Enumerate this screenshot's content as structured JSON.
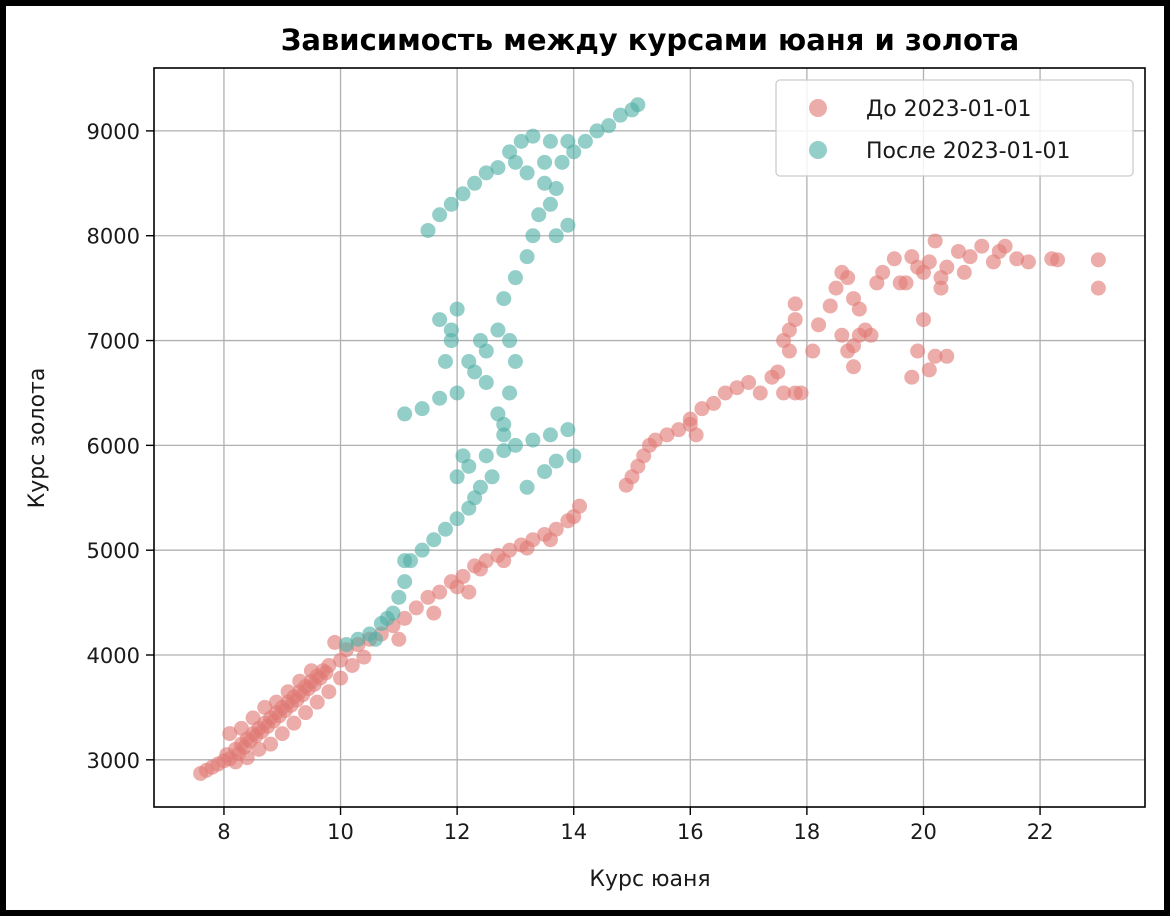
{
  "chart_data": {
    "type": "scatter",
    "title": "Зависимость между курсами юаня и золота",
    "xlabel": "Курс юаня",
    "ylabel": "Курс золота",
    "xlim": [
      6.8,
      23.8
    ],
    "ylim": [
      2550,
      9600
    ],
    "xticks": [
      8,
      10,
      12,
      14,
      16,
      18,
      20,
      22
    ],
    "yticks": [
      3000,
      4000,
      5000,
      6000,
      7000,
      8000,
      9000
    ],
    "grid": true,
    "legend_position": "top-right",
    "series": [
      {
        "name": "До 2023-01-01",
        "color": "#e07b76",
        "points": [
          [
            7.6,
            2870
          ],
          [
            7.7,
            2900
          ],
          [
            7.8,
            2930
          ],
          [
            7.9,
            2960
          ],
          [
            8.0,
            2990
          ],
          [
            8.05,
            3050
          ],
          [
            8.1,
            3010
          ],
          [
            8.2,
            3100
          ],
          [
            8.25,
            3060
          ],
          [
            8.3,
            3150
          ],
          [
            8.35,
            3120
          ],
          [
            8.4,
            3200
          ],
          [
            8.45,
            3180
          ],
          [
            8.5,
            3250
          ],
          [
            8.55,
            3230
          ],
          [
            8.6,
            3300
          ],
          [
            8.65,
            3270
          ],
          [
            8.7,
            3350
          ],
          [
            8.75,
            3320
          ],
          [
            8.8,
            3400
          ],
          [
            8.85,
            3370
          ],
          [
            8.9,
            3450
          ],
          [
            8.95,
            3420
          ],
          [
            9.0,
            3500
          ],
          [
            9.05,
            3470
          ],
          [
            9.1,
            3550
          ],
          [
            9.15,
            3520
          ],
          [
            9.2,
            3600
          ],
          [
            9.25,
            3570
          ],
          [
            9.3,
            3650
          ],
          [
            9.35,
            3620
          ],
          [
            9.4,
            3700
          ],
          [
            9.45,
            3680
          ],
          [
            9.5,
            3750
          ],
          [
            9.55,
            3720
          ],
          [
            9.6,
            3800
          ],
          [
            9.65,
            3780
          ],
          [
            9.7,
            3850
          ],
          [
            9.75,
            3830
          ],
          [
            9.8,
            3900
          ],
          [
            8.1,
            3250
          ],
          [
            8.3,
            3300
          ],
          [
            8.5,
            3400
          ],
          [
            8.7,
            3500
          ],
          [
            8.9,
            3550
          ],
          [
            9.1,
            3650
          ],
          [
            9.3,
            3750
          ],
          [
            9.5,
            3850
          ],
          [
            8.2,
            2980
          ],
          [
            8.4,
            3020
          ],
          [
            8.6,
            3100
          ],
          [
            8.8,
            3150
          ],
          [
            9.0,
            3250
          ],
          [
            9.2,
            3350
          ],
          [
            9.4,
            3450
          ],
          [
            9.6,
            3550
          ],
          [
            9.8,
            3650
          ],
          [
            10.0,
            3780
          ],
          [
            10.2,
            3900
          ],
          [
            10.4,
            3980
          ],
          [
            9.9,
            4120
          ],
          [
            10.0,
            3950
          ],
          [
            10.1,
            4050
          ],
          [
            10.3,
            4100
          ],
          [
            10.5,
            4150
          ],
          [
            10.7,
            4200
          ],
          [
            10.9,
            4280
          ],
          [
            11.0,
            4150
          ],
          [
            11.1,
            4350
          ],
          [
            11.3,
            4450
          ],
          [
            11.5,
            4550
          ],
          [
            11.6,
            4400
          ],
          [
            11.7,
            4600
          ],
          [
            11.9,
            4700
          ],
          [
            12.0,
            4650
          ],
          [
            12.1,
            4750
          ],
          [
            12.2,
            4600
          ],
          [
            12.3,
            4850
          ],
          [
            12.5,
            4900
          ],
          [
            12.7,
            4950
          ],
          [
            12.9,
            5000
          ],
          [
            13.1,
            5050
          ],
          [
            13.3,
            5100
          ],
          [
            13.5,
            5150
          ],
          [
            13.7,
            5200
          ],
          [
            13.9,
            5280
          ],
          [
            14.0,
            5320
          ],
          [
            14.1,
            5420
          ],
          [
            12.4,
            4820
          ],
          [
            12.8,
            4900
          ],
          [
            13.2,
            5020
          ],
          [
            13.6,
            5100
          ],
          [
            14.9,
            5620
          ],
          [
            15.0,
            5700
          ],
          [
            15.1,
            5800
          ],
          [
            15.2,
            5900
          ],
          [
            15.3,
            6000
          ],
          [
            15.4,
            6050
          ],
          [
            15.6,
            6100
          ],
          [
            15.8,
            6150
          ],
          [
            16.0,
            6200
          ],
          [
            16.1,
            6100
          ],
          [
            16.0,
            6250
          ],
          [
            16.2,
            6350
          ],
          [
            16.4,
            6400
          ],
          [
            16.6,
            6500
          ],
          [
            16.8,
            6550
          ],
          [
            17.0,
            6600
          ],
          [
            17.2,
            6500
          ],
          [
            17.4,
            6650
          ],
          [
            17.5,
            6700
          ],
          [
            17.6,
            7000
          ],
          [
            17.7,
            7100
          ],
          [
            17.8,
            7200
          ],
          [
            17.6,
            6500
          ],
          [
            17.8,
            6500
          ],
          [
            17.9,
            6500
          ],
          [
            17.7,
            6900
          ],
          [
            17.8,
            7350
          ],
          [
            18.1,
            6900
          ],
          [
            18.2,
            7150
          ],
          [
            18.4,
            7330
          ],
          [
            18.5,
            7500
          ],
          [
            18.6,
            7650
          ],
          [
            18.7,
            7600
          ],
          [
            18.8,
            7400
          ],
          [
            18.9,
            7300
          ],
          [
            19.0,
            7100
          ],
          [
            18.6,
            7050
          ],
          [
            18.8,
            6950
          ],
          [
            18.7,
            6900
          ],
          [
            18.8,
            6750
          ],
          [
            18.9,
            7050
          ],
          [
            19.1,
            7050
          ],
          [
            19.2,
            7550
          ],
          [
            19.3,
            7650
          ],
          [
            19.5,
            7780
          ],
          [
            19.7,
            7550
          ],
          [
            19.8,
            7800
          ],
          [
            19.9,
            7700
          ],
          [
            20.0,
            7650
          ],
          [
            20.1,
            7750
          ],
          [
            20.2,
            7950
          ],
          [
            20.3,
            7600
          ],
          [
            20.4,
            7700
          ],
          [
            20.6,
            7850
          ],
          [
            20.8,
            7800
          ],
          [
            21.0,
            7900
          ],
          [
            21.2,
            7750
          ],
          [
            21.4,
            7900
          ],
          [
            21.6,
            7780
          ],
          [
            21.8,
            7750
          ],
          [
            22.2,
            7780
          ],
          [
            22.3,
            7770
          ],
          [
            23.0,
            7770
          ],
          [
            23.0,
            7500
          ],
          [
            19.8,
            6650
          ],
          [
            19.9,
            6900
          ],
          [
            20.0,
            7200
          ],
          [
            20.2,
            6850
          ],
          [
            20.1,
            6720
          ],
          [
            20.4,
            6850
          ],
          [
            20.3,
            7500
          ],
          [
            19.6,
            7550
          ],
          [
            20.7,
            7650
          ],
          [
            21.3,
            7850
          ]
        ]
      },
      {
        "name": "После 2023-01-01",
        "color": "#52b0a6",
        "points": [
          [
            10.1,
            4100
          ],
          [
            10.3,
            4150
          ],
          [
            10.5,
            4200
          ],
          [
            10.7,
            4300
          ],
          [
            10.9,
            4400
          ],
          [
            11.0,
            4550
          ],
          [
            11.1,
            4700
          ],
          [
            11.2,
            4900
          ],
          [
            11.4,
            5000
          ],
          [
            11.6,
            5100
          ],
          [
            11.8,
            5200
          ],
          [
            12.0,
            5300
          ],
          [
            12.2,
            5400
          ],
          [
            12.3,
            5500
          ],
          [
            12.0,
            5700
          ],
          [
            12.2,
            5800
          ],
          [
            12.5,
            5900
          ],
          [
            12.8,
            5950
          ],
          [
            13.0,
            6000
          ],
          [
            13.3,
            6050
          ],
          [
            13.6,
            6100
          ],
          [
            13.9,
            6150
          ],
          [
            14.0,
            5900
          ],
          [
            13.7,
            5850
          ],
          [
            12.8,
            6100
          ],
          [
            12.7,
            6300
          ],
          [
            12.9,
            6500
          ],
          [
            13.0,
            6800
          ],
          [
            12.9,
            7000
          ],
          [
            12.7,
            7100
          ],
          [
            12.5,
            6900
          ],
          [
            12.3,
            6700
          ],
          [
            12.0,
            6500
          ],
          [
            11.7,
            6450
          ],
          [
            11.4,
            6350
          ],
          [
            11.1,
            6300
          ],
          [
            11.8,
            6800
          ],
          [
            11.9,
            7000
          ],
          [
            11.7,
            7200
          ],
          [
            12.0,
            7300
          ],
          [
            12.2,
            6800
          ],
          [
            12.5,
            6600
          ],
          [
            12.8,
            7400
          ],
          [
            13.0,
            7600
          ],
          [
            13.2,
            7800
          ],
          [
            13.3,
            8000
          ],
          [
            13.4,
            8200
          ],
          [
            13.6,
            8300
          ],
          [
            13.7,
            8450
          ],
          [
            13.5,
            8500
          ],
          [
            13.2,
            8600
          ],
          [
            13.0,
            8700
          ],
          [
            12.7,
            8650
          ],
          [
            12.5,
            8600
          ],
          [
            12.3,
            8500
          ],
          [
            12.1,
            8400
          ],
          [
            11.9,
            8300
          ],
          [
            11.7,
            8200
          ],
          [
            11.5,
            8050
          ],
          [
            13.1,
            8900
          ],
          [
            13.3,
            8950
          ],
          [
            13.6,
            8900
          ],
          [
            13.9,
            8900
          ],
          [
            14.0,
            8800
          ],
          [
            14.2,
            8900
          ],
          [
            14.4,
            9000
          ],
          [
            14.6,
            9050
          ],
          [
            14.8,
            9150
          ],
          [
            15.0,
            9200
          ],
          [
            15.1,
            9250
          ],
          [
            13.8,
            8700
          ],
          [
            13.9,
            8100
          ],
          [
            13.7,
            8000
          ],
          [
            13.5,
            8700
          ],
          [
            12.9,
            8800
          ],
          [
            11.1,
            4900
          ],
          [
            10.8,
            4350
          ],
          [
            10.6,
            4150
          ],
          [
            12.4,
            5600
          ],
          [
            12.6,
            5700
          ],
          [
            13.2,
            5600
          ],
          [
            13.5,
            5750
          ],
          [
            12.1,
            5900
          ],
          [
            11.9,
            7100
          ],
          [
            12.4,
            7000
          ],
          [
            12.8,
            6200
          ]
        ]
      }
    ]
  }
}
